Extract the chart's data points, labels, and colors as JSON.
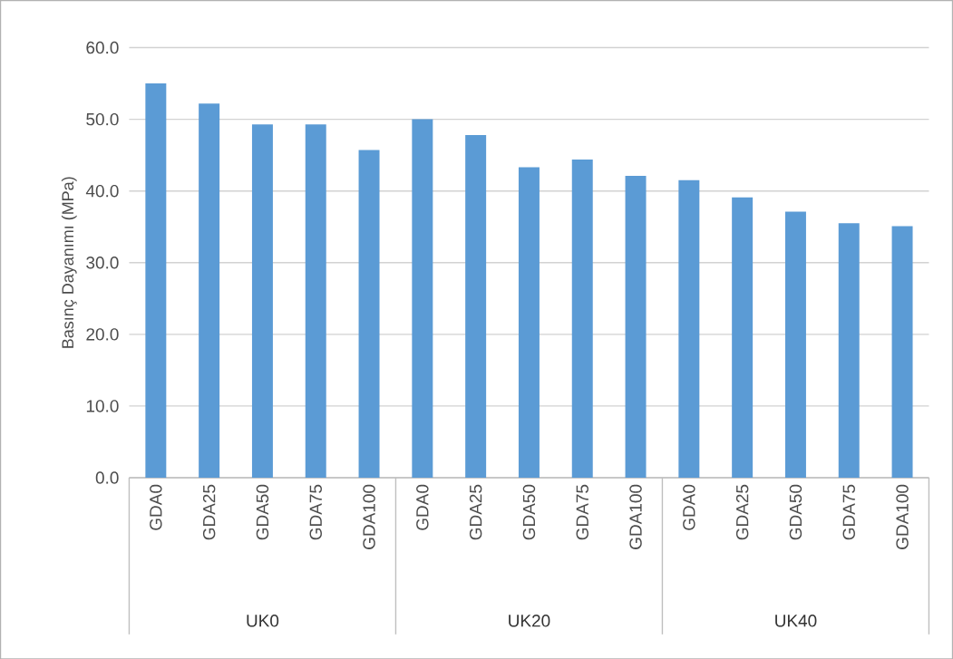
{
  "chart_data": {
    "type": "bar",
    "ylabel": "Basınç Dayanımı (MPa)",
    "categories": [
      "GDA0",
      "GDA25",
      "GDA50",
      "GDA75",
      "GDA100",
      "GDA0",
      "GDA25",
      "GDA50",
      "GDA75",
      "GDA100",
      "GDA0",
      "GDA25",
      "GDA50",
      "GDA75",
      "GDA100"
    ],
    "values": [
      55.0,
      52.2,
      49.3,
      49.3,
      45.7,
      50.0,
      47.8,
      43.3,
      44.4,
      42.1,
      41.5,
      39.1,
      37.1,
      35.5,
      35.1
    ],
    "color": "#5b9bd5",
    "ylim": [
      0,
      60
    ],
    "yticks": [
      {
        "value": 0,
        "label": "0.0"
      },
      {
        "value": 10,
        "label": "10.0"
      },
      {
        "value": 20,
        "label": "20.0"
      },
      {
        "value": 30,
        "label": "30.0"
      },
      {
        "value": 40,
        "label": "40.0"
      },
      {
        "value": 50,
        "label": "50.0"
      },
      {
        "value": 60,
        "label": "60.0"
      }
    ],
    "grid": "y",
    "annotations": [
      "UK0",
      "UK20",
      "UK40"
    ]
  }
}
